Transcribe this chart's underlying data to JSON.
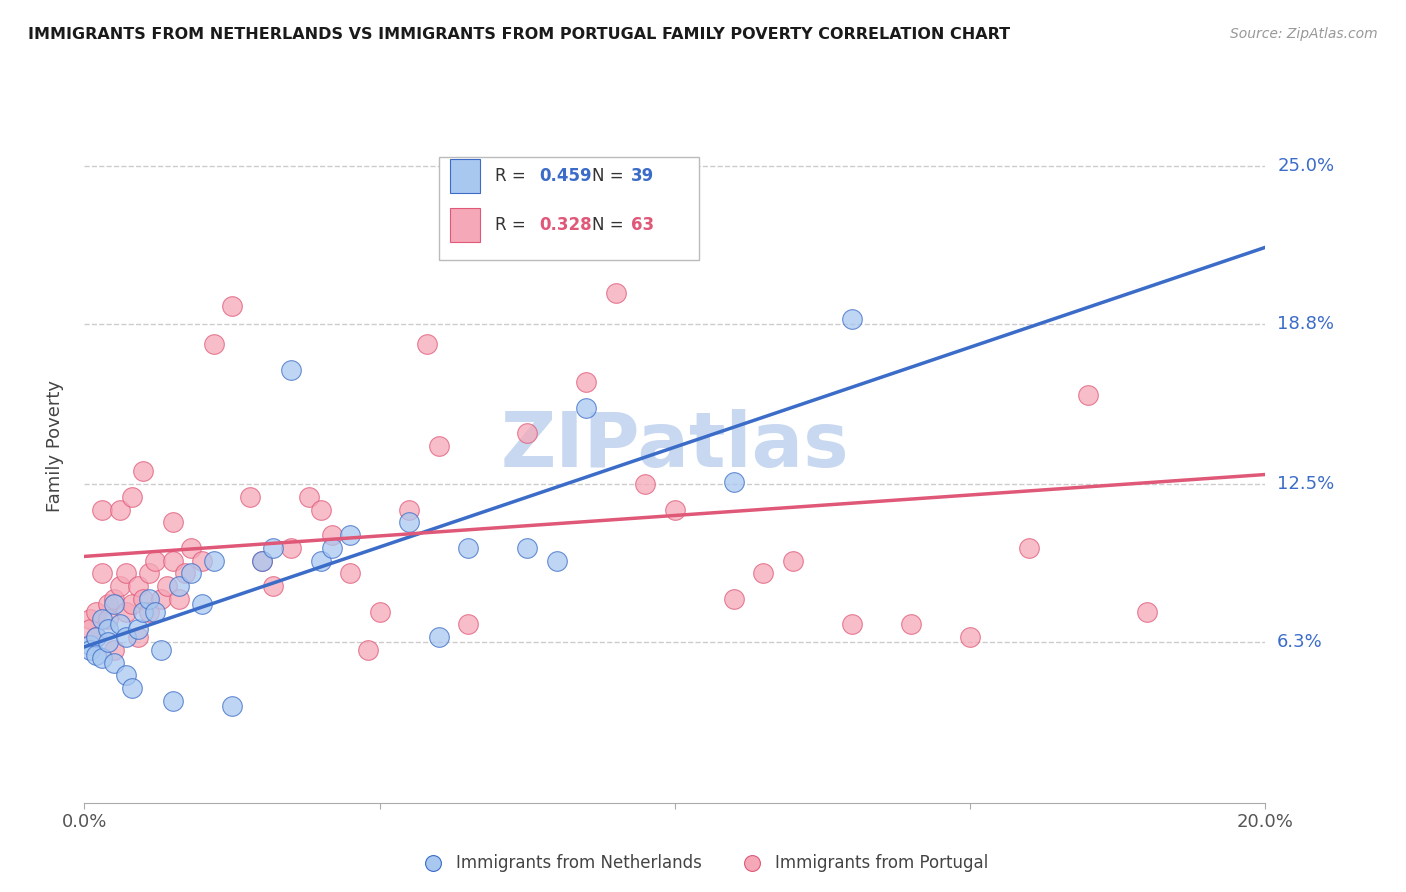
{
  "title": "IMMIGRANTS FROM NETHERLANDS VS IMMIGRANTS FROM PORTUGAL FAMILY POVERTY CORRELATION CHART",
  "source": "Source: ZipAtlas.com",
  "ylabel": "Family Poverty",
  "ytick_labels": [
    "6.3%",
    "12.5%",
    "18.8%",
    "25.0%"
  ],
  "ytick_values": [
    0.063,
    0.125,
    0.188,
    0.25
  ],
  "xmin": 0.0,
  "xmax": 0.2,
  "ymin": 0.0,
  "ymax": 0.28,
  "R_netherlands": 0.459,
  "N_netherlands": 39,
  "R_portugal": 0.328,
  "N_portugal": 63,
  "color_netherlands": "#A8C8F0",
  "color_portugal": "#F5A8B8",
  "line_color_netherlands": "#3B6CC8",
  "line_color_portugal": "#E05878",
  "watermark": "ZIPatlas",
  "watermark_color": "#C8D8F0",
  "netherlands_x": [
    0.001,
    0.001,
    0.002,
    0.002,
    0.003,
    0.003,
    0.004,
    0.004,
    0.005,
    0.005,
    0.006,
    0.007,
    0.007,
    0.008,
    0.009,
    0.01,
    0.011,
    0.012,
    0.013,
    0.015,
    0.016,
    0.018,
    0.02,
    0.022,
    0.025,
    0.03,
    0.032,
    0.035,
    0.04,
    0.042,
    0.045,
    0.055,
    0.06,
    0.065,
    0.075,
    0.08,
    0.085,
    0.11,
    0.13
  ],
  "netherlands_y": [
    0.062,
    0.06,
    0.065,
    0.058,
    0.057,
    0.072,
    0.068,
    0.063,
    0.055,
    0.078,
    0.07,
    0.065,
    0.05,
    0.045,
    0.068,
    0.075,
    0.08,
    0.075,
    0.06,
    0.04,
    0.085,
    0.09,
    0.078,
    0.095,
    0.038,
    0.095,
    0.1,
    0.17,
    0.095,
    0.1,
    0.105,
    0.11,
    0.065,
    0.1,
    0.1,
    0.095,
    0.155,
    0.126,
    0.19
  ],
  "portugal_x": [
    0.001,
    0.001,
    0.002,
    0.002,
    0.003,
    0.003,
    0.004,
    0.004,
    0.005,
    0.005,
    0.006,
    0.006,
    0.007,
    0.007,
    0.008,
    0.008,
    0.009,
    0.009,
    0.01,
    0.01,
    0.011,
    0.011,
    0.012,
    0.013,
    0.014,
    0.015,
    0.015,
    0.016,
    0.017,
    0.018,
    0.02,
    0.022,
    0.025,
    0.028,
    0.03,
    0.032,
    0.035,
    0.038,
    0.04,
    0.042,
    0.045,
    0.048,
    0.05,
    0.055,
    0.058,
    0.06,
    0.065,
    0.07,
    0.075,
    0.08,
    0.085,
    0.09,
    0.095,
    0.1,
    0.11,
    0.115,
    0.12,
    0.13,
    0.14,
    0.15,
    0.16,
    0.17,
    0.18
  ],
  "portugal_y": [
    0.072,
    0.068,
    0.075,
    0.065,
    0.09,
    0.115,
    0.078,
    0.072,
    0.08,
    0.06,
    0.085,
    0.115,
    0.075,
    0.09,
    0.12,
    0.078,
    0.085,
    0.065,
    0.08,
    0.13,
    0.09,
    0.075,
    0.095,
    0.08,
    0.085,
    0.095,
    0.11,
    0.08,
    0.09,
    0.1,
    0.095,
    0.18,
    0.195,
    0.12,
    0.095,
    0.085,
    0.1,
    0.12,
    0.115,
    0.105,
    0.09,
    0.06,
    0.075,
    0.115,
    0.18,
    0.14,
    0.07,
    0.22,
    0.145,
    0.23,
    0.165,
    0.2,
    0.125,
    0.115,
    0.08,
    0.09,
    0.095,
    0.07,
    0.07,
    0.065,
    0.1,
    0.16,
    0.075
  ]
}
